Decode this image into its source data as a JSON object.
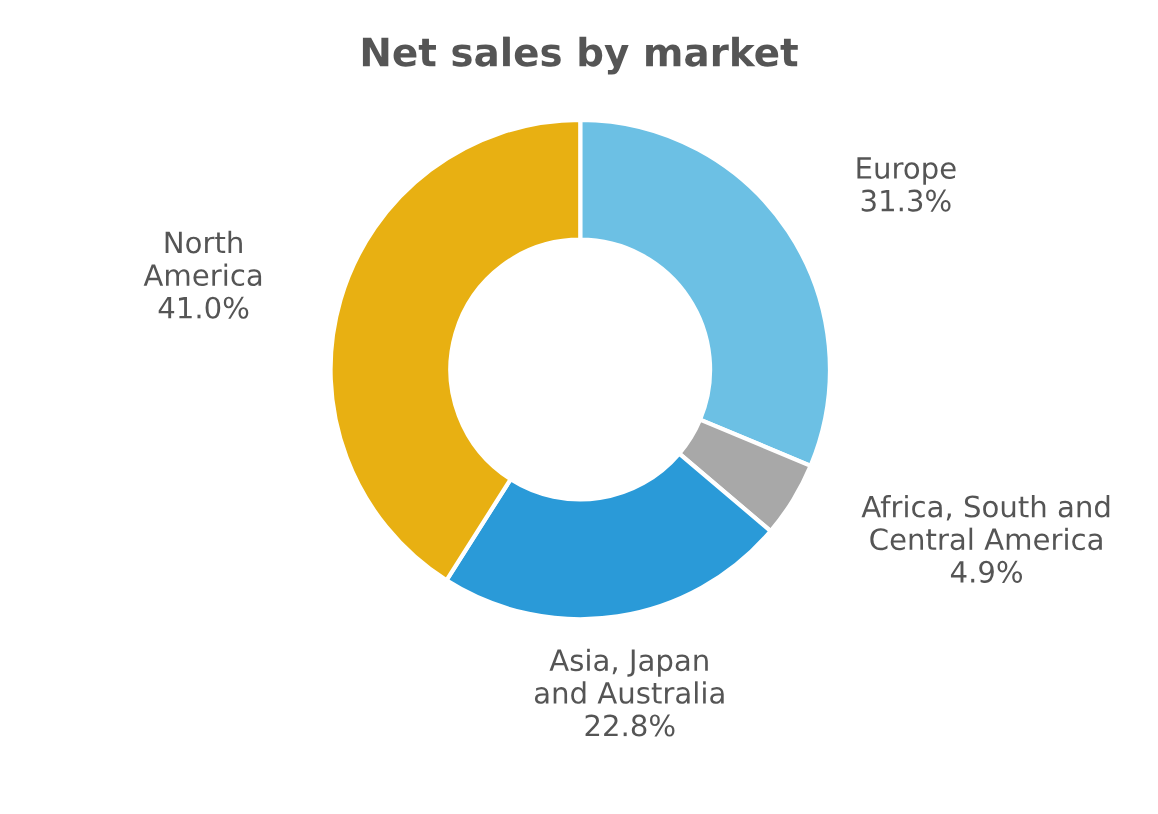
{
  "chart_data": {
    "type": "donut",
    "title": "Net sales by market",
    "categories": [
      "Europe",
      "Africa, South and\nCentral America",
      "Asia, Japan\nand Australia",
      "North\nAmerica"
    ],
    "values": [
      31.3,
      4.9,
      22.8,
      41.0
    ],
    "value_labels": [
      "31.3%",
      "4.9%",
      "22.8%",
      "41.0%"
    ],
    "colors": [
      "#6cc0e4",
      "#a8a8a8",
      "#2a9ad8",
      "#e8b012"
    ],
    "legend": false
  }
}
